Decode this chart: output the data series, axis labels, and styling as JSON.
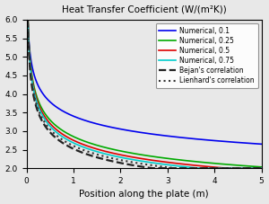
{
  "title": "Heat Transfer Coefficient (W/(m²K))",
  "xlabel": "Position along the plate (m)",
  "ylabel": "",
  "xlim": [
    0,
    5
  ],
  "ylim": [
    2,
    6
  ],
  "yticks": [
    2,
    2.5,
    3,
    3.5,
    4,
    4.5,
    5,
    5.5,
    6
  ],
  "xticks": [
    0,
    1,
    2,
    3,
    4,
    5
  ],
  "curves": [
    {
      "label": "Numerical, 0.1",
      "color": "#0000ee",
      "ls": "-",
      "lw": 1.2,
      "A": 3.4,
      "n": 0.155
    },
    {
      "label": "Numerical, 0.25",
      "color": "#00aa00",
      "ls": "-",
      "lw": 1.2,
      "A": 2.85,
      "n": 0.21
    },
    {
      "label": "Numerical, 0.5",
      "color": "#dd0000",
      "ls": "-",
      "lw": 1.2,
      "A": 2.75,
      "n": 0.22
    },
    {
      "label": "Numerical, 0.75",
      "color": "#00cccc",
      "ls": "-",
      "lw": 1.2,
      "A": 2.68,
      "n": 0.225
    },
    {
      "label": "Bejan's correlation",
      "color": "#222222",
      "ls": "--",
      "lw": 1.6,
      "A": 2.52,
      "n": 0.235
    },
    {
      "label": "Lienhard's correlation",
      "color": "#333333",
      "ls": ":",
      "lw": 1.5,
      "A": 2.6,
      "n": 0.228
    }
  ],
  "background_color": "#e8e8e8",
  "legend_loc": "upper right",
  "legend_fontsize": 5.5
}
